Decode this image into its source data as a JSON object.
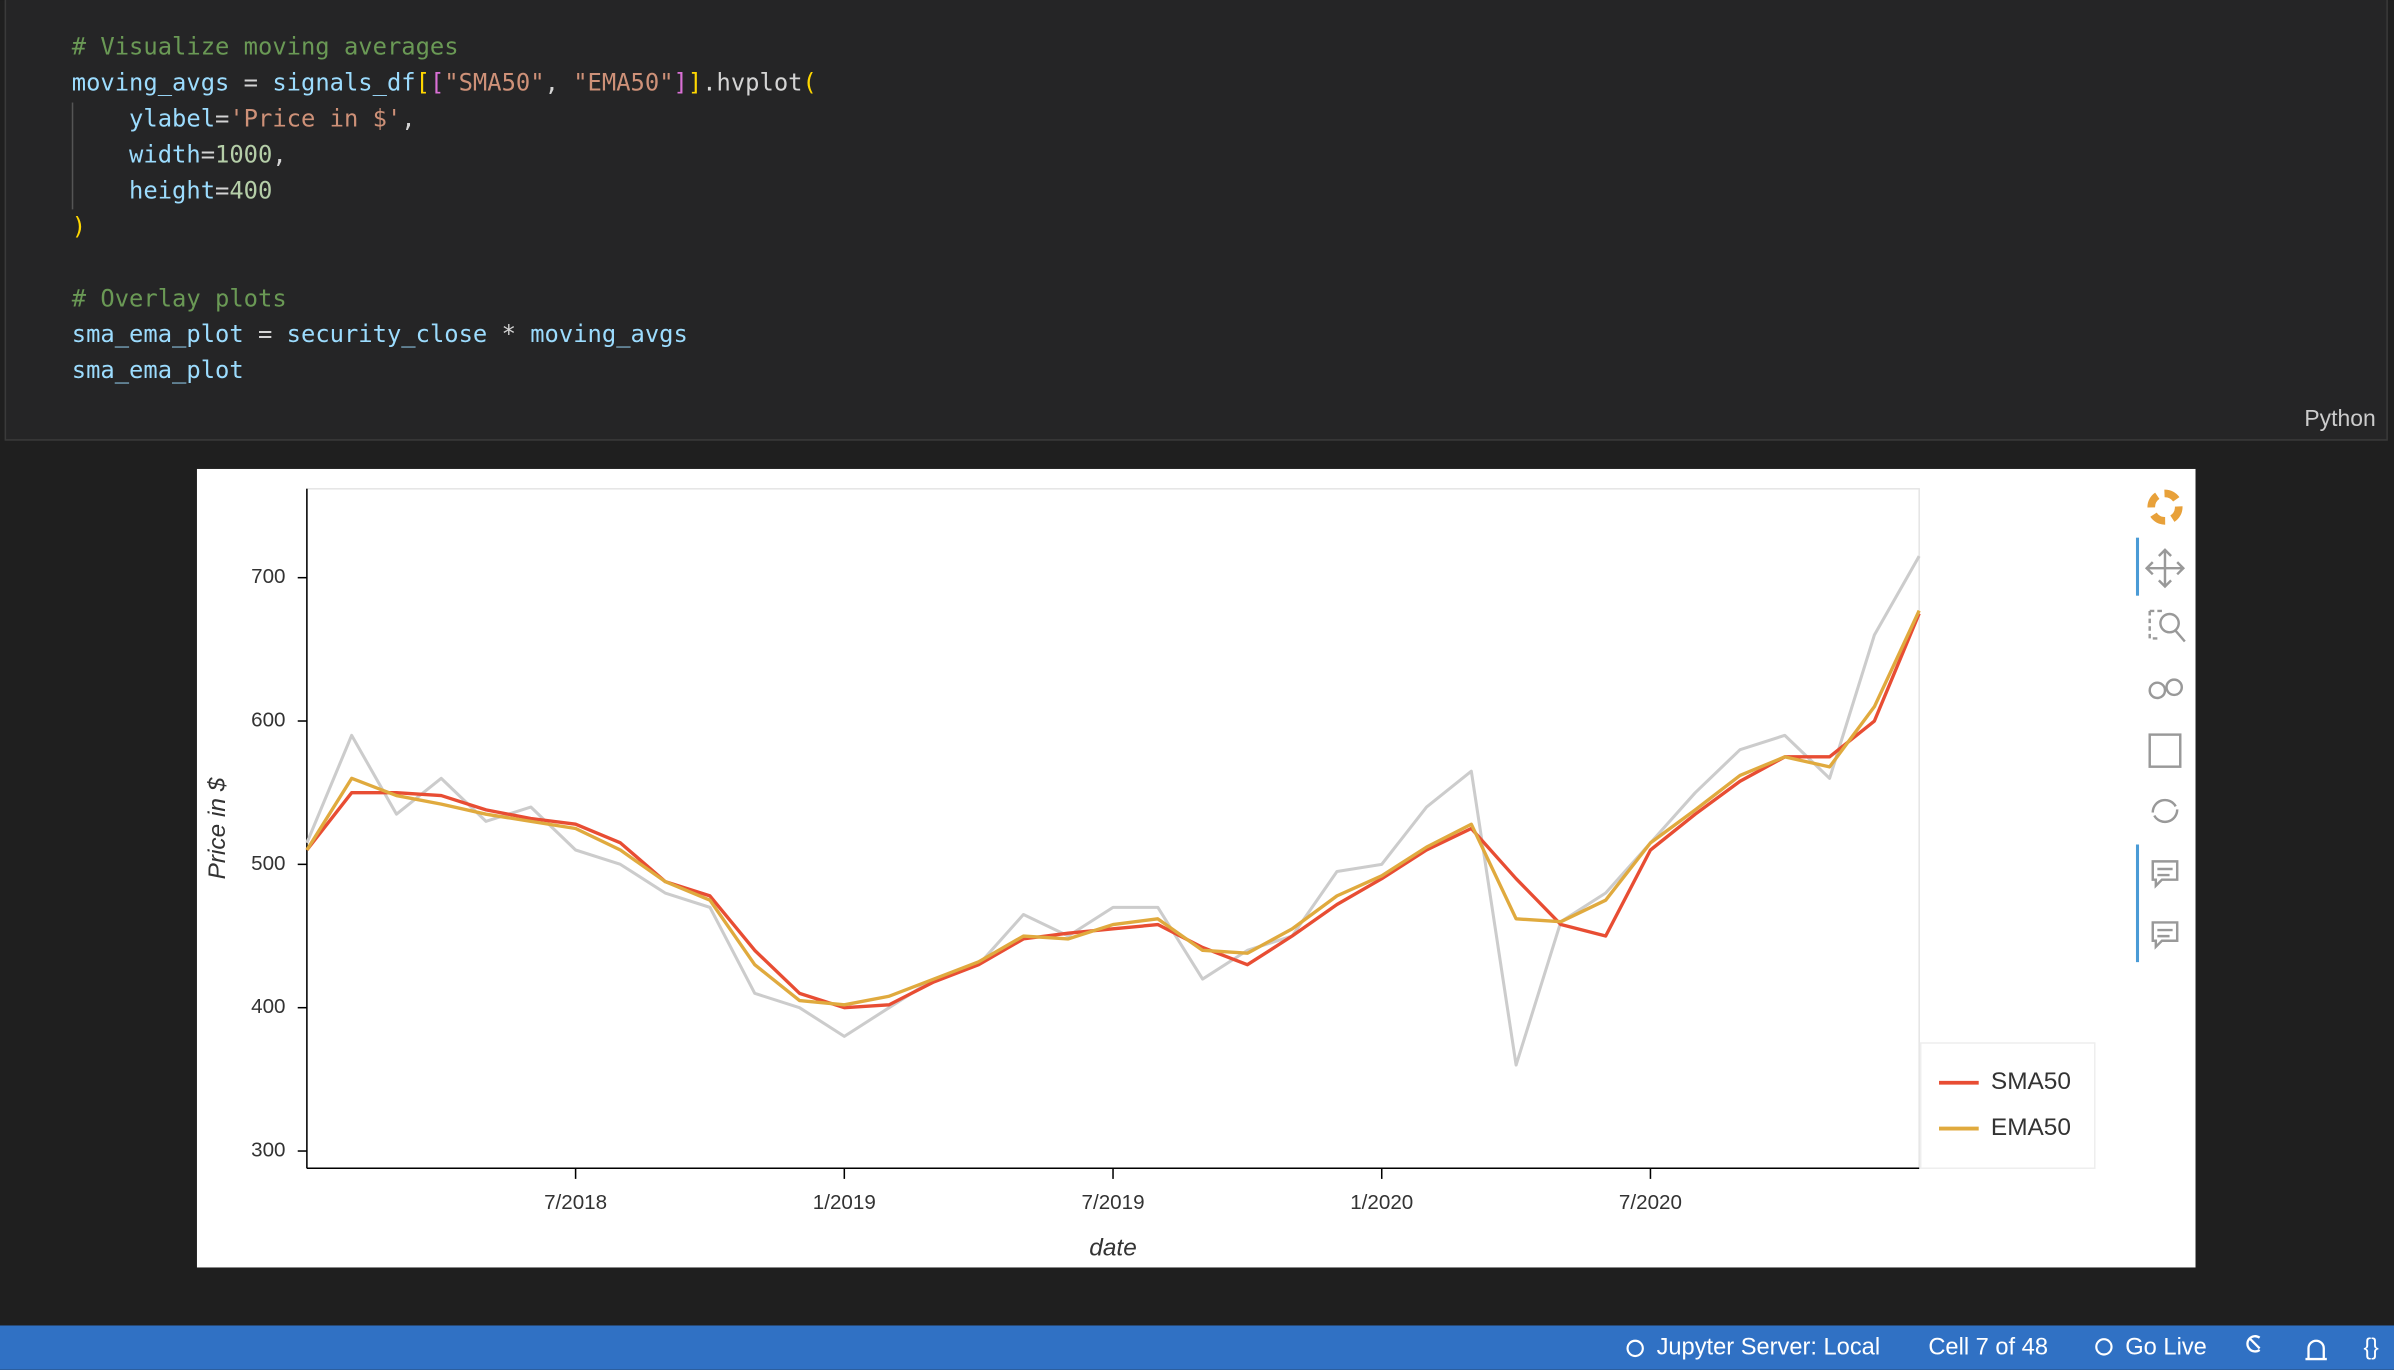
{
  "code": {
    "language": "Python",
    "lines": [
      [
        {
          "text": "# Visualize moving averages",
          "color": "#6a9955"
        }
      ],
      [
        {
          "text": "moving_avgs",
          "color": "#9cdcfe"
        },
        {
          "text": " = ",
          "color": "#d4d4d4"
        },
        {
          "text": "signals_df",
          "color": "#9cdcfe"
        },
        {
          "text": "[",
          "color": "#ffd700"
        },
        {
          "text": "[",
          "color": "#da70d6"
        },
        {
          "text": "\"SMA50\"",
          "color": "#ce9178"
        },
        {
          "text": ", ",
          "color": "#d4d4d4"
        },
        {
          "text": "\"EMA50\"",
          "color": "#ce9178"
        },
        {
          "text": "]",
          "color": "#da70d6"
        },
        {
          "text": "]",
          "color": "#ffd700"
        },
        {
          "text": ".hvplot",
          "color": "#d4d4d4"
        },
        {
          "text": "(",
          "color": "#ffd700"
        }
      ],
      [
        {
          "text": "    ylabel",
          "color": "#9cdcfe"
        },
        {
          "text": "=",
          "color": "#d4d4d4"
        },
        {
          "text": "'Price in $'",
          "color": "#ce9178"
        },
        {
          "text": ",",
          "color": "#d4d4d4"
        }
      ],
      [
        {
          "text": "    width",
          "color": "#9cdcfe"
        },
        {
          "text": "=",
          "color": "#d4d4d4"
        },
        {
          "text": "1000",
          "color": "#b5cea8"
        },
        {
          "text": ",",
          "color": "#d4d4d4"
        }
      ],
      [
        {
          "text": "    height",
          "color": "#9cdcfe"
        },
        {
          "text": "=",
          "color": "#d4d4d4"
        },
        {
          "text": "400",
          "color": "#b5cea8"
        }
      ],
      [
        {
          "text": ")",
          "color": "#ffd700"
        }
      ],
      [],
      [
        {
          "text": "# Overlay plots",
          "color": "#6a9955"
        }
      ],
      [
        {
          "text": "sma_ema_plot",
          "color": "#9cdcfe"
        },
        {
          "text": " = ",
          "color": "#d4d4d4"
        },
        {
          "text": "security_close",
          "color": "#9cdcfe"
        },
        {
          "text": " * ",
          "color": "#d4d4d4"
        },
        {
          "text": "moving_avgs",
          "color": "#9cdcfe"
        }
      ],
      [
        {
          "text": "sma_ema_plot",
          "color": "#9cdcfe"
        }
      ]
    ]
  },
  "chart_data": {
    "type": "line",
    "y_label": "Price in $",
    "x_label": "date",
    "x": [
      "2018-01",
      "2018-02",
      "2018-03",
      "2018-04",
      "2018-05",
      "2018-06",
      "2018-07",
      "2018-08",
      "2018-09",
      "2018-10",
      "2018-11",
      "2018-12",
      "2019-01",
      "2019-02",
      "2019-03",
      "2019-04",
      "2019-05",
      "2019-06",
      "2019-07",
      "2019-08",
      "2019-09",
      "2019-10",
      "2019-11",
      "2019-12",
      "2020-01",
      "2020-02",
      "2020-03",
      "2020-04",
      "2020-05",
      "2020-06",
      "2020-07",
      "2020-08",
      "2020-09",
      "2020-10",
      "2020-11",
      "2020-12",
      "2021-01"
    ],
    "series": [
      {
        "color": "#cccccc",
        "values": [
          515,
          590,
          535,
          560,
          530,
          540,
          510,
          500,
          480,
          470,
          410,
          400,
          380,
          400,
          420,
          430,
          465,
          450,
          470,
          470,
          420,
          440,
          450,
          495,
          500,
          540,
          565,
          360,
          460,
          480,
          515,
          550,
          580,
          590,
          560,
          660,
          715
        ]
      },
      {
        "name": "SMA50",
        "color": "#e84d33",
        "values": [
          510,
          550,
          550,
          548,
          538,
          532,
          528,
          515,
          488,
          478,
          440,
          410,
          400,
          402,
          418,
          430,
          448,
          452,
          455,
          458,
          442,
          430,
          450,
          472,
          490,
          510,
          525,
          490,
          458,
          450,
          510,
          535,
          558,
          575,
          575,
          600,
          675
        ]
      },
      {
        "name": "EMA50",
        "color": "#e0aa3e",
        "values": [
          510,
          560,
          548,
          542,
          535,
          530,
          525,
          510,
          488,
          475,
          430,
          405,
          402,
          408,
          420,
          432,
          450,
          448,
          458,
          462,
          440,
          438,
          455,
          478,
          492,
          512,
          528,
          462,
          460,
          475,
          515,
          538,
          562,
          575,
          568,
          610,
          677
        ]
      }
    ],
    "xlim": [
      "2018-01",
      "2021-01"
    ],
    "xticks": [
      {
        "value": "2018-07",
        "label": "7/2018"
      },
      {
        "value": "2019-01",
        "label": "1/2019"
      },
      {
        "value": "2019-07",
        "label": "7/2019"
      },
      {
        "value": "2020-01",
        "label": "1/2020"
      },
      {
        "value": "2020-07",
        "label": "7/2020"
      }
    ],
    "ylim": [
      288,
      762
    ],
    "yticks": [
      300,
      400,
      500,
      600,
      700
    ],
    "legend": "bottom-right-outside"
  },
  "status_bar": {
    "items": [
      "Jupyter Server: Local",
      "Cell 7 of 48",
      "Go Live"
    ]
  }
}
